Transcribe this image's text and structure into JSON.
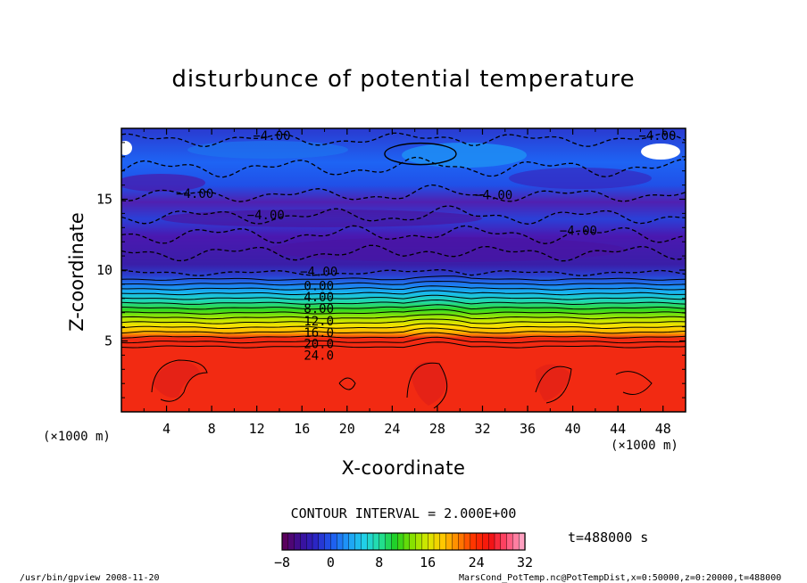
{
  "chart_data": {
    "type": "heatmap",
    "title": "disturbunce of potential temperature",
    "xlabel": "X-coordinate",
    "ylabel": "Z-coordinate",
    "x_unit": "(×1000 m)",
    "y_unit": "(×1000 m)",
    "xlim": [
      0,
      50
    ],
    "ylim": [
      0,
      20
    ],
    "x_ticks": [
      4,
      8,
      12,
      16,
      20,
      24,
      28,
      32,
      36,
      40,
      44,
      48
    ],
    "y_ticks": [
      5,
      10,
      15
    ],
    "contour_interval": "CONTOUR INTERVAL = 2.000E+00",
    "time_label": "t=488000  s",
    "colorbar": {
      "min": -8,
      "max": 32,
      "ticks": [
        "−8",
        "0",
        "8",
        "16",
        "24",
        "32"
      ],
      "colors": [
        "#5a005e",
        "#3a0f9a",
        "#2a28c8",
        "#1e5cf0",
        "#1e9cf8",
        "#20d0e8",
        "#22e0a0",
        "#20d020",
        "#80e000",
        "#d8e800",
        "#ffc800",
        "#ff8000",
        "#ff3000",
        "#f21010",
        "#ff4a70",
        "#ffa0c0"
      ]
    },
    "contour_labels": [
      "−4.00",
      "−4.00",
      "−4.00",
      "−4.00",
      "−4.00",
      "−4.00",
      "−4.00",
      "0.00",
      "4.00",
      "8.00",
      "12.0",
      "16.0",
      "20.0",
      "24.0"
    ],
    "footer_left": "/usr/bin/gpview   2008-11-20",
    "footer_right": "MarsCond_PotTemp.nc@PotTempDist,x=0:50000,z=0:20000,t=488000"
  }
}
